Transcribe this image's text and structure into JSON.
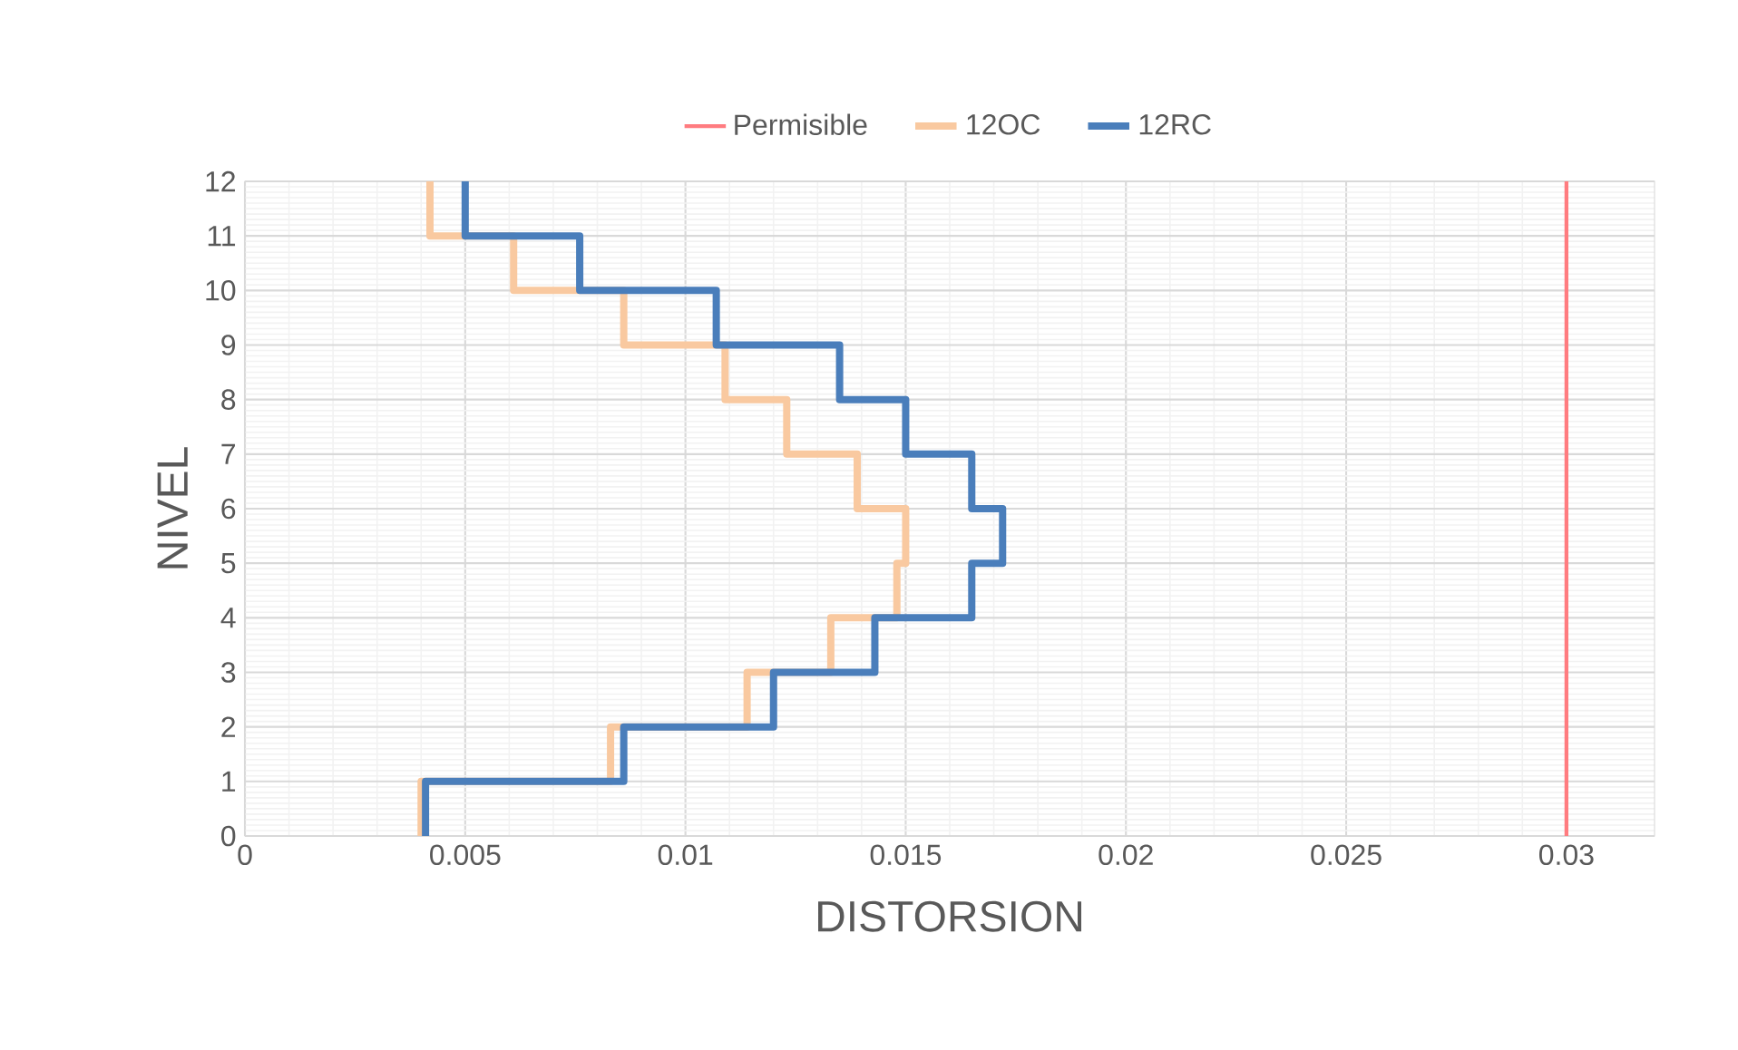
{
  "chart_data": {
    "type": "line",
    "xlabel": "DISTORSION",
    "ylabel": "NIVEL",
    "xlim": [
      0,
      0.032
    ],
    "xticks": [
      0,
      0.005,
      0.01,
      0.015,
      0.02,
      0.025,
      0.03
    ],
    "ylim": [
      0,
      12
    ],
    "yticks": [
      0,
      1,
      2,
      3,
      4,
      5,
      6,
      7,
      8,
      9,
      10,
      11,
      12
    ],
    "grid": true,
    "legend": "top",
    "marker": "none",
    "series": [
      {
        "name": "Permisible",
        "color": "#ff7c80",
        "line_style": "solid",
        "x": [
          0.03,
          0.03
        ],
        "values": [
          0,
          12
        ]
      },
      {
        "name": "12OC",
        "color": "#f9c9a0",
        "line_style": "solid",
        "x": [
          0.004,
          0.004,
          0.0083,
          0.0083,
          0.0114,
          0.0114,
          0.0133,
          0.0133,
          0.0148,
          0.0148,
          0.015,
          0.015,
          0.0139,
          0.0139,
          0.0123,
          0.0123,
          0.0109,
          0.0109,
          0.0086,
          0.0086,
          0.0061,
          0.0061,
          0.0042,
          0.0042
        ],
        "values": [
          0,
          1,
          1,
          2,
          2,
          3,
          3,
          4,
          4,
          5,
          5,
          6,
          6,
          7,
          7,
          8,
          8,
          9,
          9,
          10,
          10,
          11,
          11,
          12
        ]
      },
      {
        "name": "12RC",
        "color": "#4a7ebb",
        "line_style": "solid",
        "x": [
          0.0041,
          0.0041,
          0.0086,
          0.0086,
          0.012,
          0.012,
          0.0143,
          0.0143,
          0.0165,
          0.0165,
          0.0172,
          0.0172,
          0.0165,
          0.0165,
          0.015,
          0.015,
          0.0135,
          0.0135,
          0.0107,
          0.0107,
          0.0076,
          0.0076,
          0.005,
          0.005
        ],
        "values": [
          0,
          1,
          1,
          2,
          2,
          3,
          3,
          4,
          4,
          5,
          5,
          6,
          6,
          7,
          7,
          8,
          8,
          9,
          9,
          10,
          10,
          11,
          11,
          12
        ]
      }
    ]
  }
}
